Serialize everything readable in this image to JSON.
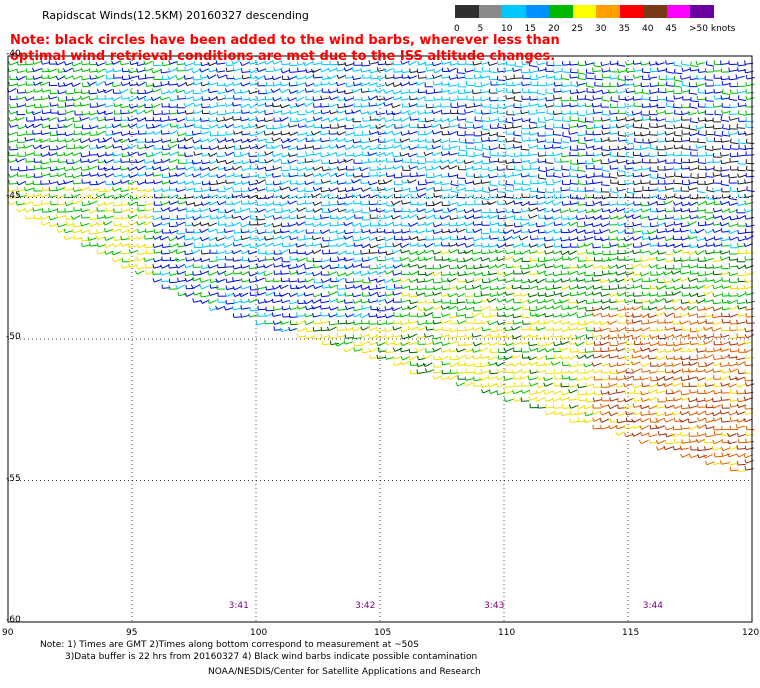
{
  "title": "Rapidscat Winds(12.5KM) 20160327 descending",
  "note": "Note: black circles have been added to the wind barbs, wherever less than optimal wind retrieval conditions are met due to the ISS altitude changes.",
  "legend": {
    "labels": [
      "0",
      "5",
      "10",
      "15",
      "20",
      "25",
      "30",
      "35",
      "40",
      "45",
      ">50 knots"
    ],
    "colors": [
      "#2f2f2f",
      "#8a8a8a",
      "#00c8ff",
      "#0091ff",
      "#00b800",
      "#ffff00",
      "#ffa000",
      "#ff0000",
      "#7a3a1a",
      "#ff00ff",
      "#6a00a0"
    ]
  },
  "axes": {
    "x_ticks": [
      "90",
      "95",
      "100",
      "105",
      "110",
      "115",
      "120"
    ],
    "y_ticks": [
      "-40",
      "-45",
      "-50",
      "-55",
      "-60"
    ],
    "xlim": [
      90,
      120
    ],
    "ylim": [
      -60,
      -40
    ]
  },
  "pass_times": [
    {
      "label": "3:41",
      "lon": 99.3
    },
    {
      "label": "3:42",
      "lon": 104.4
    },
    {
      "label": "3:43",
      "lon": 109.6
    },
    {
      "label": "3:44",
      "lon": 116.0
    }
  ],
  "footer": {
    "line1": "Note: 1) Times are GMT 2)Times along bottom correspond to measurement at ~50S",
    "line2": "3)Data buffer is 22 hrs from 20160327 4) Black wind barbs indicate possible contamination",
    "line3": "NOAA/NESDIS/Center for Satellite Applications and Research"
  },
  "barb_colors": {
    "dark": "#202020",
    "cyan": "#00c8ff",
    "blue": "#0010e0",
    "green": "#00c000",
    "darkgreen": "#006400",
    "yellow": "#f0e000",
    "orange": "#e06000",
    "brown": "#a03010"
  }
}
